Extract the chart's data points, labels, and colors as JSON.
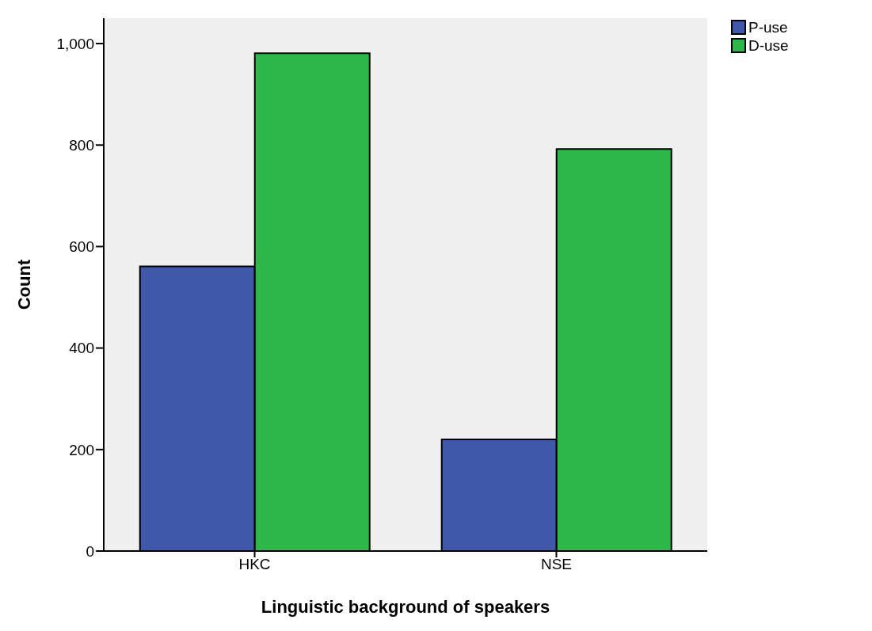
{
  "chart_data": {
    "type": "bar",
    "xlabel": "Linguistic background of speakers",
    "ylabel": "Count",
    "categories": [
      "HKC",
      "NSE"
    ],
    "series": [
      {
        "name": "P-use",
        "color": "#3f58aa",
        "values": [
          561,
          220
        ]
      },
      {
        "name": "D-use",
        "color": "#2fb84a",
        "values": [
          981,
          792
        ]
      }
    ],
    "ylim": [
      0,
      1050
    ],
    "yticks": [
      0,
      200,
      400,
      600,
      800,
      {
        "value": 1000,
        "label": "1,000"
      }
    ],
    "grid": false,
    "legend": "top right"
  }
}
